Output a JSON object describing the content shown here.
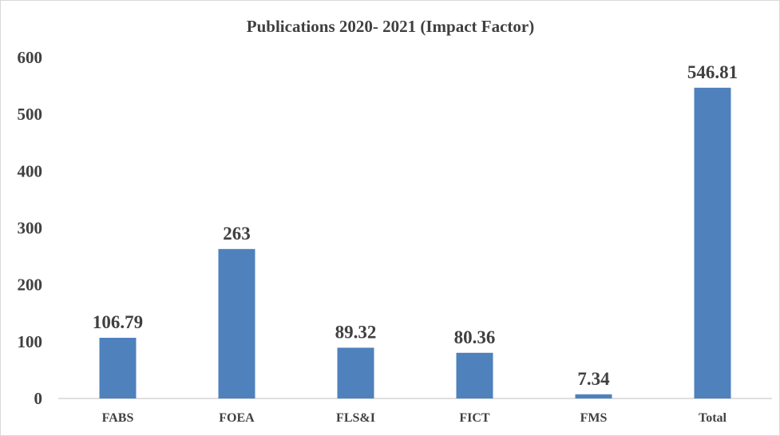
{
  "chart_data": {
    "type": "bar",
    "title": "Publications 2020- 2021 (Impact Factor)",
    "categories": [
      "FABS",
      "FOEA",
      "FLS&I",
      "FICT",
      "FMS",
      "Total"
    ],
    "values": [
      106.79,
      263,
      89.32,
      80.36,
      7.34,
      546.81
    ],
    "data_labels": [
      "106.79",
      "263",
      "89.32",
      "80.36",
      "7.34",
      "546.81"
    ],
    "yticks": [
      "0",
      "100",
      "200",
      "300",
      "400",
      "500",
      "600"
    ],
    "ylim": [
      0,
      600
    ],
    "bar_color": "#4f81bd",
    "grid": false,
    "legend": "none"
  }
}
